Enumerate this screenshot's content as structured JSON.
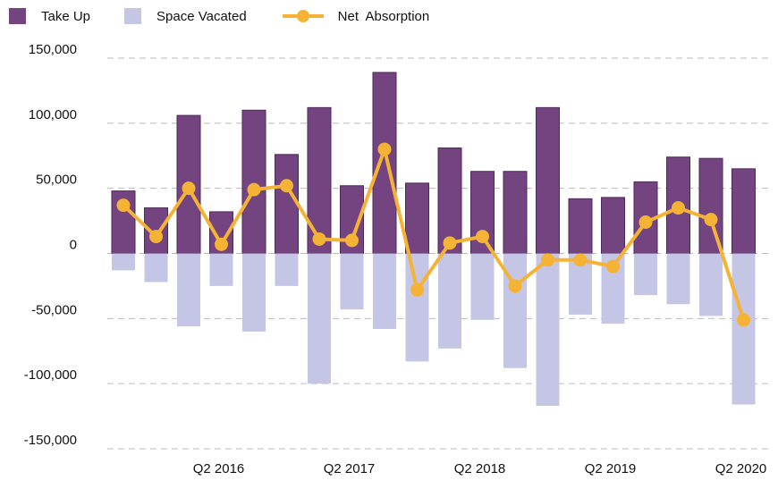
{
  "legend": {
    "take_up": "Take Up",
    "space_vacated": "Space Vacated",
    "net_absorption": "Net  Absorption"
  },
  "colors": {
    "take_up": "#73447f",
    "take_up_border": "#4e2a58",
    "space_vacated": "#c5c5e6",
    "net_absorption": "#f5b335",
    "grid": "#bbbbbb"
  },
  "chart_data": {
    "type": "bar",
    "grid": true,
    "legend_position": "top-left",
    "ylim": [
      -150000,
      150000
    ],
    "y_ticks": [
      150000,
      100000,
      50000,
      0,
      -50000,
      -100000,
      -150000
    ],
    "y_tick_labels": [
      "150,000",
      "100,000",
      "50,000",
      "0",
      "-50,000",
      "-100,000",
      "-150,000"
    ],
    "x_tick_labels": [
      {
        "index": 3,
        "label": "Q2 2016"
      },
      {
        "index": 7,
        "label": "Q2 2017"
      },
      {
        "index": 11,
        "label": "Q2 2018"
      },
      {
        "index": 15,
        "label": "Q2 2019"
      },
      {
        "index": 19,
        "label": "Q2 2020"
      }
    ],
    "series": [
      {
        "name": "Take Up",
        "type": "bar",
        "values": [
          48000,
          35000,
          106000,
          32000,
          110000,
          76000,
          112000,
          52000,
          139000,
          54000,
          81000,
          63000,
          63000,
          112000,
          42000,
          43000,
          55000,
          74000,
          73000,
          65000
        ]
      },
      {
        "name": "Space Vacated",
        "type": "bar",
        "values": [
          -13000,
          -22000,
          -56000,
          -25000,
          -60000,
          -25000,
          -100000,
          -43000,
          -58000,
          -83000,
          -73000,
          -51000,
          -88000,
          -117000,
          -47000,
          -54000,
          -32000,
          -39000,
          -48000,
          -116000
        ]
      },
      {
        "name": "Net  Absorption",
        "type": "line",
        "values": [
          37000,
          13000,
          50000,
          7000,
          49000,
          52000,
          11000,
          10000,
          80000,
          -28000,
          8000,
          13000,
          -25000,
          -5000,
          -5000,
          -10000,
          24000,
          35000,
          26000,
          -51000
        ]
      }
    ]
  }
}
